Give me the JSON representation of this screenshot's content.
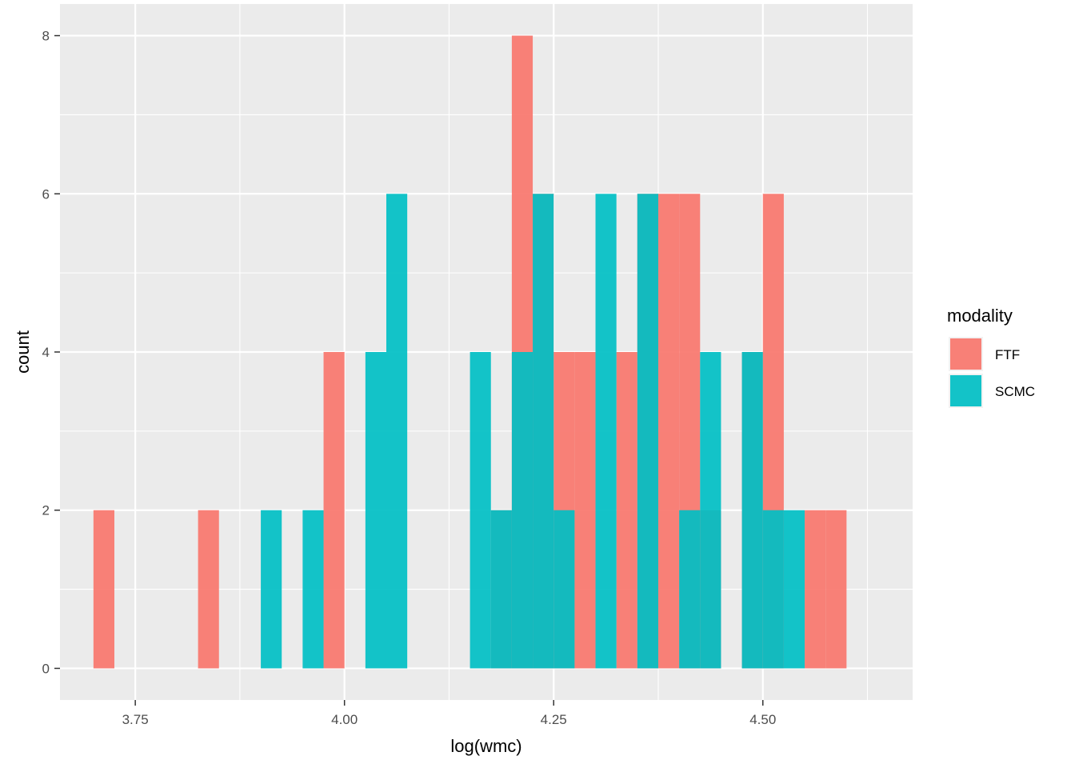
{
  "chart_data": {
    "type": "bar",
    "title": "",
    "xlabel": "log(wmc)",
    "ylabel": "count",
    "xlim": [
      3.66,
      4.679
    ],
    "ylim": [
      -0.4,
      8.4
    ],
    "x_ticks": [
      3.75,
      4.0,
      4.25,
      4.5
    ],
    "x_tick_labels": [
      "3.75",
      "4.00",
      "4.25",
      "4.50"
    ],
    "y_ticks": [
      0,
      2,
      4,
      6,
      8
    ],
    "y_tick_labels": [
      "0",
      "2",
      "4",
      "6",
      "8"
    ],
    "bin_width": 0.025,
    "grid": true,
    "legend": {
      "title": "modality",
      "position": "right"
    },
    "series": [
      {
        "name": "FTF",
        "color": "#F8766D",
        "x": [
          3.7125,
          3.8375,
          3.9875,
          4.1875,
          4.2125,
          4.2375,
          4.2625,
          4.2875,
          4.3375,
          4.3625,
          4.3875,
          4.4125,
          4.4375,
          4.4875,
          4.5125,
          4.5625,
          4.5875
        ],
        "values": [
          2,
          2,
          4,
          2,
          8,
          6,
          4,
          4,
          4,
          6,
          6,
          6,
          2,
          4,
          6,
          2,
          2
        ]
      },
      {
        "name": "SCMC",
        "color": "#00BFC4",
        "x": [
          3.9125,
          3.9625,
          4.0375,
          4.0625,
          4.1625,
          4.1875,
          4.2125,
          4.2375,
          4.2625,
          4.3125,
          4.3625,
          4.4125,
          4.4375,
          4.4875,
          4.5125,
          4.5375
        ],
        "values": [
          2,
          2,
          4,
          6,
          4,
          2,
          4,
          6,
          2,
          6,
          6,
          2,
          4,
          4,
          2,
          2
        ]
      }
    ]
  }
}
